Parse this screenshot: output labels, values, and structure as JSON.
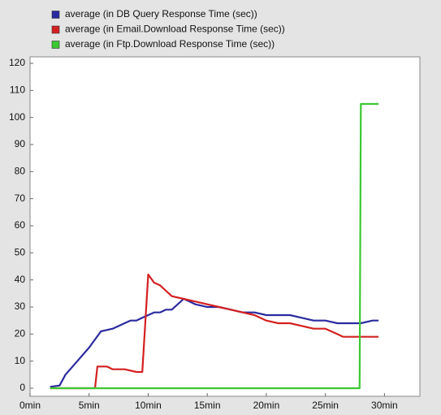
{
  "chart_data": {
    "type": "line",
    "legend": "top-left",
    "xlim": [
      0,
      33
    ],
    "xticks": [
      {
        "value": 0,
        "label": "0min"
      },
      {
        "value": 5,
        "label": "5min"
      },
      {
        "value": 10,
        "label": "10min"
      },
      {
        "value": 15,
        "label": "15min"
      },
      {
        "value": 20,
        "label": "20min"
      },
      {
        "value": 25,
        "label": "25min"
      },
      {
        "value": 30,
        "label": "30min"
      }
    ],
    "ylim": [
      -3,
      122.4
    ],
    "yticks": [
      0,
      10,
      20,
      30,
      40,
      50,
      60,
      70,
      80,
      90,
      100,
      110,
      120
    ],
    "grid": false,
    "series": [
      {
        "name": "average (in DB Query Response Time (sec))",
        "color": "#2a2aa0",
        "x": [
          1.7,
          2.5,
          3,
          4,
          5,
          5.5,
          6,
          7,
          8,
          8.5,
          9,
          9.5,
          10,
          10.5,
          11,
          11.5,
          12,
          12.5,
          13,
          13.5,
          14,
          15,
          16,
          17,
          18,
          19,
          20,
          21,
          22,
          23,
          24,
          25,
          26,
          27,
          28,
          29,
          29.5
        ],
        "values": [
          0.5,
          1,
          5,
          10,
          15,
          18,
          21,
          22,
          24,
          25,
          25,
          26,
          27,
          28,
          28,
          29,
          29,
          31,
          33,
          32,
          31,
          30,
          30,
          29,
          28,
          28,
          27,
          27,
          27,
          26,
          25,
          25,
          24,
          24,
          24,
          25,
          25
        ]
      },
      {
        "name": "average (in Email.Download Response Time (sec))",
        "color": "#d42020",
        "x": [
          1.7,
          5.5,
          5.7,
          6.5,
          7,
          8,
          9,
          9.5,
          10,
          10.5,
          11,
          11.5,
          12,
          13,
          14,
          15,
          16,
          17,
          18,
          19,
          20,
          21,
          22,
          23,
          24,
          25,
          26,
          26.5,
          27,
          28,
          29,
          29.5
        ],
        "values": [
          0,
          0,
          8,
          8,
          7,
          7,
          6,
          6,
          42,
          39,
          38,
          36,
          34,
          33,
          32,
          31,
          30,
          29,
          28,
          27,
          25,
          24,
          24,
          23,
          22,
          22,
          20,
          19,
          19,
          19,
          19,
          19
        ]
      },
      {
        "name": "average (in Ftp.Download Response Time (sec))",
        "color": "#3cc832",
        "x": [
          1.7,
          27.9,
          28,
          29.5
        ],
        "values": [
          0,
          0,
          105,
          105
        ]
      }
    ]
  }
}
